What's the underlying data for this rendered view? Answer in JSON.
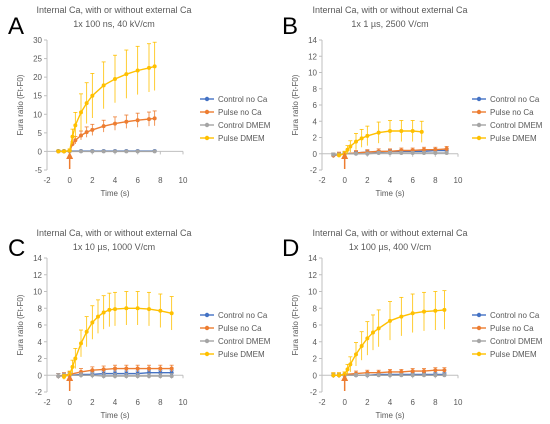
{
  "colors": {
    "control_no_ca": "#4472C4",
    "pulse_no_ca": "#ED7D31",
    "control_dmem": "#A5A5A5",
    "pulse_dmem": "#FFC000",
    "arrow": "#ED7D31",
    "axis": "#BFBFBF",
    "text": "#595959"
  },
  "chart_data": [
    {
      "panel_letter": "A",
      "type": "line",
      "title": "Internal Ca, with or without external Ca",
      "subtitle": "1x 100 ns, 40 kV/cm",
      "xlabel": "Time (s)",
      "ylabel": "Fura ratio (Ft-F0)",
      "xlim": [
        -2,
        10
      ],
      "ylim": [
        -5,
        30
      ],
      "xticks": [
        "-2",
        "0",
        "2",
        "4",
        "6",
        "8",
        "10"
      ],
      "yticks": [
        "-5",
        "0",
        "5",
        "10",
        "15",
        "20",
        "25",
        "30"
      ],
      "arrow_x": 0,
      "legend_position": "right",
      "series": [
        {
          "name": "Control no Ca",
          "x": [
            -1,
            -0.5,
            0,
            1,
            2,
            3,
            4,
            5,
            6,
            7.5
          ],
          "values": [
            0.1,
            0.1,
            0.1,
            0.1,
            0.1,
            0.1,
            0.1,
            0.1,
            0.1,
            0.1
          ],
          "error": [
            0.2,
            0.2,
            0.2,
            0.2,
            0.2,
            0.2,
            0.2,
            0.2,
            0.2,
            0.2
          ]
        },
        {
          "name": "Pulse no Ca",
          "x": [
            -1,
            -0.5,
            0,
            0.25,
            0.5,
            1,
            1.5,
            2,
            3,
            4,
            5,
            6,
            7,
            7.5
          ],
          "values": [
            0,
            0,
            0.1,
            2,
            3,
            4.3,
            5.2,
            5.8,
            6.8,
            7.5,
            8.0,
            8.4,
            8.7,
            8.9
          ],
          "error": [
            0.3,
            0.3,
            0.3,
            0.6,
            1.0,
            1.2,
            1.4,
            1.5,
            1.6,
            1.8,
            1.8,
            1.9,
            1.9,
            2.0
          ]
        },
        {
          "name": "Control DMEM",
          "x": [
            -1,
            -0.5,
            0,
            1,
            2,
            3,
            4,
            5,
            6,
            7.5
          ],
          "values": [
            0,
            0,
            0,
            0,
            0,
            0,
            0,
            0,
            0,
            0
          ],
          "error": [
            0.2,
            0.2,
            0.2,
            0.2,
            0.2,
            0.2,
            0.2,
            0.2,
            0.2,
            0.2
          ]
        },
        {
          "name": "Pulse DMEM",
          "x": [
            -1,
            -0.5,
            0,
            0.25,
            0.5,
            1,
            1.5,
            2,
            3,
            4,
            5,
            6,
            7,
            7.5
          ],
          "values": [
            0,
            0,
            0.2,
            4,
            7,
            10.5,
            13,
            15,
            17.8,
            19.5,
            20.8,
            21.8,
            22.5,
            22.9
          ],
          "error": [
            0.4,
            0.4,
            0.5,
            2,
            3.5,
            5,
            5.5,
            6,
            6.3,
            6.4,
            6.5,
            6.5,
            6.5,
            6.5
          ]
        }
      ]
    },
    {
      "panel_letter": "B",
      "type": "line",
      "title": "Internal Ca, with or without external Ca",
      "subtitle": "1x 1 µs, 2500 V/cm",
      "xlabel": "Time (s)",
      "ylabel": "Fura ratio (Ft-F0)",
      "xlim": [
        -2,
        10
      ],
      "ylim": [
        -2,
        14
      ],
      "xticks": [
        "-2",
        "0",
        "2",
        "4",
        "6",
        "8",
        "10"
      ],
      "yticks": [
        "-2",
        "0",
        "2",
        "4",
        "6",
        "8",
        "10",
        "12",
        "14"
      ],
      "arrow_x": 0,
      "legend_position": "right",
      "series": [
        {
          "name": "Control no Ca",
          "x": [
            -1,
            -0.5,
            0,
            1,
            2,
            3,
            4,
            5,
            6,
            7,
            8,
            9
          ],
          "values": [
            -0.2,
            -0.1,
            0,
            0.1,
            0.2,
            0.2,
            0.3,
            0.3,
            0.3,
            0.3,
            0.4,
            0.4
          ],
          "error": [
            0.2,
            0.2,
            0.2,
            0.2,
            0.2,
            0.2,
            0.2,
            0.2,
            0.2,
            0.2,
            0.2,
            0.2
          ]
        },
        {
          "name": "Pulse no Ca",
          "x": [
            -1,
            -0.5,
            0,
            1,
            2,
            3,
            4,
            5,
            6,
            7,
            8,
            9
          ],
          "values": [
            -0.2,
            -0.1,
            0,
            0.1,
            0.2,
            0.3,
            0.3,
            0.4,
            0.4,
            0.5,
            0.5,
            0.6
          ],
          "error": [
            0.3,
            0.3,
            0.3,
            0.3,
            0.3,
            0.3,
            0.3,
            0.3,
            0.3,
            0.3,
            0.3,
            0.3
          ]
        },
        {
          "name": "Control DMEM",
          "x": [
            -1,
            -0.5,
            0,
            1,
            2,
            3,
            4,
            5,
            6,
            7,
            8,
            9
          ],
          "values": [
            -0.1,
            -0.1,
            0,
            0,
            0,
            0.1,
            0.1,
            0.1,
            0.1,
            0.1,
            0.1,
            0.1
          ],
          "error": [
            0.2,
            0.2,
            0.2,
            0.2,
            0.2,
            0.2,
            0.2,
            0.2,
            0.2,
            0.2,
            0.2,
            0.2
          ]
        },
        {
          "name": "Pulse DMEM",
          "x": [
            -0.5,
            0,
            0.25,
            0.5,
            1,
            1.5,
            2,
            3,
            4,
            5,
            6,
            6.8
          ],
          "values": [
            -0.2,
            0,
            0.5,
            0.9,
            1.5,
            1.9,
            2.2,
            2.6,
            2.8,
            2.8,
            2.8,
            2.7
          ],
          "error": [
            0.2,
            0.3,
            0.5,
            0.7,
            1.0,
            1.1,
            1.2,
            1.3,
            1.3,
            1.3,
            1.3,
            1.3
          ]
        }
      ]
    },
    {
      "panel_letter": "C",
      "type": "line",
      "title": "Internal Ca, with or without external Ca",
      "subtitle": "1x 10 µs, 1000 V/cm",
      "xlabel": "Time (s)",
      "ylabel": "Fura ratio (Ft-F0)",
      "xlim": [
        -2,
        10
      ],
      "ylim": [
        -2,
        14
      ],
      "xticks": [
        "-2",
        "0",
        "2",
        "4",
        "6",
        "8",
        "10"
      ],
      "yticks": [
        "-2",
        "0",
        "2",
        "4",
        "6",
        "8",
        "10",
        "12",
        "14"
      ],
      "arrow_x": 0,
      "legend_position": "right",
      "series": [
        {
          "name": "Control no Ca",
          "x": [
            -1,
            -0.5,
            0,
            1,
            2,
            3,
            4,
            5,
            6,
            7,
            8,
            9
          ],
          "values": [
            -0.1,
            0,
            0,
            0.1,
            0.1,
            0.2,
            0.2,
            0.2,
            0.2,
            0.3,
            0.3,
            0.3
          ],
          "error": [
            0.3,
            0.3,
            0.3,
            0.3,
            0.3,
            0.3,
            0.3,
            0.3,
            0.3,
            0.3,
            0.3,
            0.3
          ]
        },
        {
          "name": "Pulse no Ca",
          "x": [
            -1,
            -0.5,
            0,
            1,
            2,
            3,
            4,
            5,
            6,
            7,
            8,
            9
          ],
          "values": [
            -0.1,
            0,
            0.1,
            0.4,
            0.6,
            0.7,
            0.8,
            0.8,
            0.8,
            0.8,
            0.8,
            0.8
          ],
          "error": [
            0.3,
            0.3,
            0.3,
            0.4,
            0.4,
            0.4,
            0.4,
            0.4,
            0.4,
            0.4,
            0.4,
            0.4
          ]
        },
        {
          "name": "Control DMEM",
          "x": [
            -1,
            -0.5,
            0,
            1,
            2,
            3,
            4,
            5,
            6,
            7,
            8,
            9
          ],
          "values": [
            -0.1,
            -0.1,
            0,
            0,
            0,
            -0.1,
            -0.1,
            -0.1,
            -0.1,
            -0.1,
            -0.1,
            -0.1
          ],
          "error": [
            0.3,
            0.3,
            0.3,
            0.3,
            0.3,
            0.3,
            0.3,
            0.3,
            0.3,
            0.3,
            0.3,
            0.3
          ]
        },
        {
          "name": "Pulse DMEM",
          "x": [
            -0.5,
            0,
            0.25,
            0.5,
            1,
            1.5,
            2,
            2.5,
            3,
            3.5,
            4,
            5,
            6,
            7,
            8,
            9
          ],
          "values": [
            -0.2,
            0.1,
            1,
            2,
            3.8,
            5.2,
            6.3,
            7,
            7.5,
            7.8,
            7.9,
            8.0,
            8.0,
            7.9,
            7.7,
            7.4
          ],
          "error": [
            0.3,
            0.4,
            0.8,
            1.2,
            1.6,
            1.8,
            2.0,
            2.0,
            2.0,
            2.0,
            2.0,
            2.0,
            2.0,
            2.0,
            2.0,
            2.0
          ]
        }
      ]
    },
    {
      "panel_letter": "D",
      "type": "line",
      "title": "Internal Ca, with or without external Ca",
      "subtitle": "1x 100 µs, 400 V/cm",
      "xlabel": "Time (s)",
      "ylabel": "Fura ratio (Ft-F0)",
      "xlim": [
        -2,
        10
      ],
      "ylim": [
        -2,
        14
      ],
      "xticks": [
        "-2",
        "0",
        "2",
        "4",
        "6",
        "8",
        "10"
      ],
      "yticks": [
        "-2",
        "0",
        "2",
        "4",
        "6",
        "8",
        "10",
        "12",
        "14"
      ],
      "arrow_x": 0,
      "legend_position": "right",
      "series": [
        {
          "name": "Control no Ca",
          "x": [
            -1,
            -0.5,
            0,
            1,
            2,
            3,
            4,
            5,
            6,
            7,
            8,
            8.8
          ],
          "values": [
            0,
            0,
            0,
            0,
            0,
            0.1,
            0.1,
            0.1,
            0.1,
            0.1,
            0.1,
            0.1
          ],
          "error": [
            0.2,
            0.2,
            0.2,
            0.2,
            0.2,
            0.2,
            0.2,
            0.2,
            0.2,
            0.2,
            0.2,
            0.2
          ]
        },
        {
          "name": "Pulse no Ca",
          "x": [
            -1,
            -0.5,
            0,
            1,
            2,
            3,
            4,
            5,
            6,
            7,
            8,
            8.8
          ],
          "values": [
            0,
            0,
            0.1,
            0.2,
            0.3,
            0.3,
            0.4,
            0.4,
            0.5,
            0.5,
            0.6,
            0.6
          ],
          "error": [
            0.3,
            0.3,
            0.3,
            0.3,
            0.3,
            0.3,
            0.3,
            0.3,
            0.3,
            0.3,
            0.3,
            0.3
          ]
        },
        {
          "name": "Control DMEM",
          "x": [
            -1,
            -0.5,
            0,
            1,
            2,
            3,
            4,
            5,
            6,
            7,
            8,
            8.8
          ],
          "values": [
            0,
            0,
            0,
            0,
            0,
            0,
            0,
            0,
            0,
            0,
            0,
            0
          ],
          "error": [
            0.2,
            0.2,
            0.2,
            0.2,
            0.2,
            0.2,
            0.2,
            0.2,
            0.2,
            0.2,
            0.2,
            0.2
          ]
        },
        {
          "name": "Pulse DMEM",
          "x": [
            -1,
            -0.5,
            0,
            0.25,
            0.5,
            1,
            1.5,
            2,
            2.5,
            3,
            4,
            5,
            6,
            7,
            8,
            8.8
          ],
          "values": [
            0,
            0,
            0.1,
            0.7,
            1.3,
            2.5,
            3.5,
            4.4,
            5.1,
            5.6,
            6.5,
            7.0,
            7.4,
            7.6,
            7.7,
            7.8
          ],
          "error": [
            0.3,
            0.3,
            0.3,
            0.6,
            0.9,
            1.4,
            1.7,
            2.0,
            2.1,
            2.2,
            2.3,
            2.3,
            2.3,
            2.3,
            2.3,
            2.3
          ]
        }
      ]
    }
  ]
}
